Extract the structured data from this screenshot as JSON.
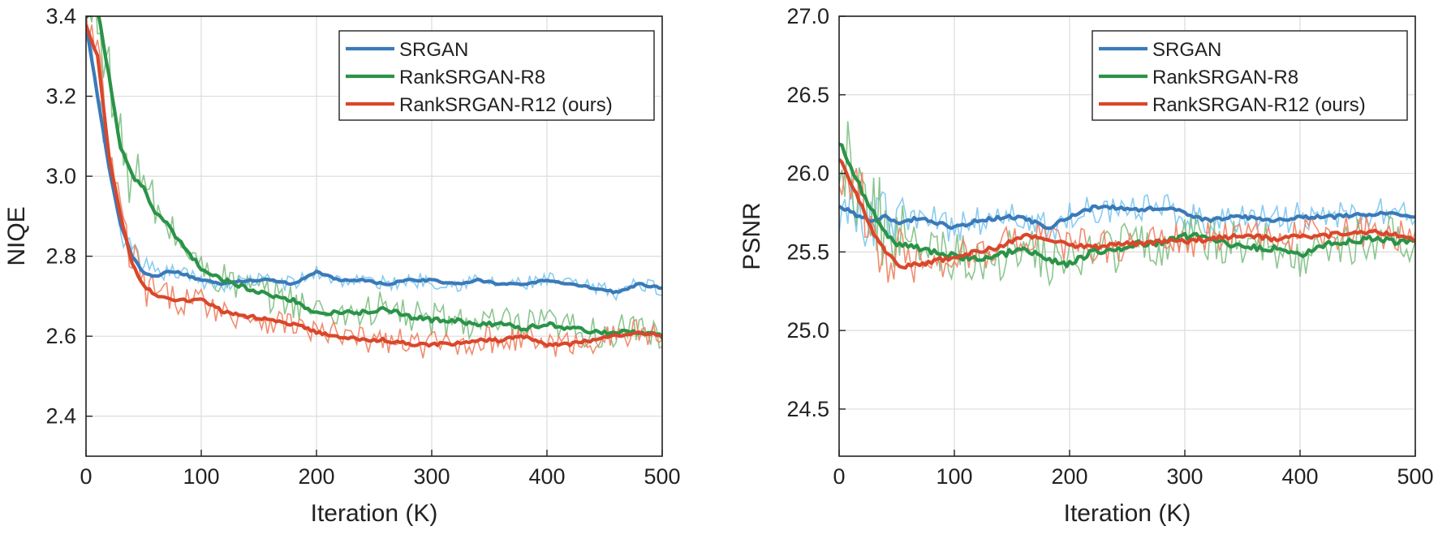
{
  "colors": {
    "srgan": "#3a7ab8",
    "rank_r8": "#2b9348",
    "rank_r12": "#d9472b",
    "srgan_raw": "#7cc6f0",
    "rank_r8_raw": "#7fc083",
    "rank_r12_raw": "#f08060"
  },
  "chart_data": [
    {
      "type": "line",
      "xlabel": "Iteration (K)",
      "ylabel": "NIQE",
      "xlim": [
        0,
        500
      ],
      "ylim": [
        2.3,
        3.4
      ],
      "xticks": [
        "0",
        "100",
        "200",
        "300",
        "400",
        "500"
      ],
      "yticks": [
        "2.4",
        "2.6",
        "2.8",
        "3.0",
        "3.2",
        "3.4"
      ],
      "grid": true,
      "legend_position": "top-right",
      "x": [
        0,
        10,
        20,
        30,
        40,
        50,
        60,
        70,
        80,
        100,
        120,
        140,
        160,
        180,
        200,
        220,
        240,
        260,
        280,
        300,
        320,
        340,
        360,
        380,
        400,
        420,
        440,
        460,
        480,
        500
      ],
      "series": [
        {
          "name": "SRGAN",
          "values": [
            3.38,
            3.2,
            3.02,
            2.88,
            2.8,
            2.76,
            2.75,
            2.76,
            2.76,
            2.74,
            2.73,
            2.74,
            2.74,
            2.73,
            2.76,
            2.74,
            2.74,
            2.73,
            2.74,
            2.74,
            2.73,
            2.74,
            2.73,
            2.73,
            2.74,
            2.73,
            2.72,
            2.71,
            2.73,
            2.72
          ],
          "raw_noise": 0.02
        },
        {
          "name": "RankSRGAN-R8",
          "values": [
            3.4,
            3.42,
            3.25,
            3.07,
            3.0,
            2.97,
            2.91,
            2.88,
            2.84,
            2.77,
            2.74,
            2.72,
            2.7,
            2.69,
            2.66,
            2.66,
            2.66,
            2.67,
            2.65,
            2.64,
            2.64,
            2.63,
            2.63,
            2.62,
            2.63,
            2.62,
            2.61,
            2.61,
            2.61,
            2.6
          ],
          "raw_noise": 0.045
        },
        {
          "name": "RankSRGAN-R12 (ours)",
          "values": [
            3.38,
            3.3,
            3.05,
            2.9,
            2.78,
            2.73,
            2.7,
            2.7,
            2.69,
            2.69,
            2.66,
            2.65,
            2.64,
            2.63,
            2.61,
            2.6,
            2.59,
            2.59,
            2.58,
            2.58,
            2.58,
            2.59,
            2.59,
            2.6,
            2.58,
            2.58,
            2.59,
            2.6,
            2.61,
            2.6
          ],
          "raw_noise": 0.035
        }
      ]
    },
    {
      "type": "line",
      "xlabel": "Iteration (K)",
      "ylabel": "PSNR",
      "xlim": [
        0,
        500
      ],
      "ylim": [
        24.2,
        27.0
      ],
      "xticks": [
        "0",
        "100",
        "200",
        "300",
        "400",
        "500"
      ],
      "yticks": [
        "24.5",
        "25.0",
        "25.5",
        "26.0",
        "26.5",
        "27.0"
      ],
      "grid": true,
      "legend_position": "top-right",
      "x": [
        0,
        10,
        20,
        30,
        40,
        50,
        60,
        70,
        80,
        100,
        120,
        140,
        160,
        180,
        200,
        220,
        240,
        260,
        280,
        300,
        320,
        340,
        360,
        380,
        400,
        420,
        440,
        460,
        480,
        500
      ],
      "series": [
        {
          "name": "SRGAN",
          "values": [
            25.8,
            25.75,
            25.72,
            25.7,
            25.72,
            25.68,
            25.7,
            25.72,
            25.7,
            25.65,
            25.7,
            25.72,
            25.72,
            25.65,
            25.72,
            25.78,
            25.78,
            25.77,
            25.78,
            25.75,
            25.7,
            25.72,
            25.72,
            25.7,
            25.72,
            25.72,
            25.73,
            25.74,
            25.75,
            25.73
          ],
          "raw_noise": 0.1
        },
        {
          "name": "RankSRGAN-R8",
          "values": [
            26.2,
            26.05,
            25.88,
            25.75,
            25.62,
            25.55,
            25.54,
            25.52,
            25.5,
            25.48,
            25.45,
            25.48,
            25.52,
            25.45,
            25.42,
            25.5,
            25.52,
            25.55,
            25.56,
            25.6,
            25.6,
            25.55,
            25.53,
            25.52,
            25.48,
            25.54,
            25.57,
            25.58,
            25.57,
            25.56
          ],
          "raw_noise": 0.16
        },
        {
          "name": "RankSRGAN-R12 (ours)",
          "values": [
            26.1,
            25.95,
            25.78,
            25.62,
            25.5,
            25.42,
            25.41,
            25.42,
            25.44,
            25.47,
            25.5,
            25.53,
            25.6,
            25.58,
            25.54,
            25.53,
            25.55,
            25.55,
            25.57,
            25.57,
            25.58,
            25.6,
            25.6,
            25.58,
            25.6,
            25.6,
            25.62,
            25.63,
            25.62,
            25.58
          ],
          "raw_noise": 0.12
        }
      ]
    }
  ]
}
